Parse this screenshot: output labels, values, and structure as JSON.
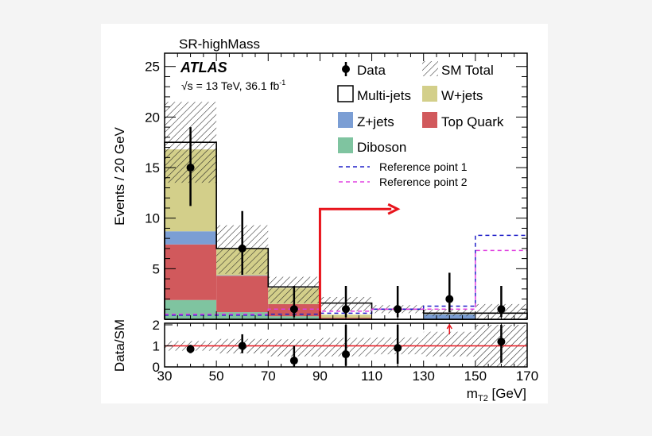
{
  "chart_data": {
    "type": "bar",
    "title": "SR-highMass",
    "experiment": "ATLAS",
    "energy_lumi": "√s = 13 TeV, 36.1 fb",
    "lumi_exponent": "-1",
    "xlabel": "m",
    "xlabel_sub": "T2",
    "xlabel_unit": " [GeV]",
    "ylabel": "Events / 20 GeV",
    "ratio_ylabel": "Data/SM",
    "xlim": [
      30,
      170
    ],
    "ylim": [
      0,
      26
    ],
    "ratio_ylim": [
      0,
      2
    ],
    "x_ticks": [
      "30",
      "50",
      "70",
      "90",
      "110",
      "130",
      "150",
      "170"
    ],
    "y_ticks": [
      "5",
      "10",
      "15",
      "20",
      "25"
    ],
    "ratio_y_ticks": [
      "0",
      "1",
      "2"
    ],
    "bin_edges": [
      30,
      50,
      70,
      90,
      110,
      130,
      150,
      170
    ],
    "stack": [
      {
        "name": "Diboson",
        "color": "#7fc4a0",
        "values": [
          1.9,
          0.7,
          0.3,
          0.05,
          0.0,
          0.0,
          0.0
        ]
      },
      {
        "name": "Top Quark",
        "color": "#d1595c",
        "values": [
          5.5,
          3.6,
          1.2,
          0.1,
          0.0,
          0.0,
          0.0
        ]
      },
      {
        "name": "Z+jets",
        "color": "#7b9ed4",
        "values": [
          1.3,
          0.05,
          0.0,
          0.0,
          0.0,
          0.5,
          0.0
        ]
      },
      {
        "name": "W+jets",
        "color": "#d3cf8a",
        "values": [
          8.1,
          2.65,
          1.6,
          0.3,
          0.0,
          0.05,
          0.0
        ]
      },
      {
        "name": "Multi-jets",
        "color": "#ffffff",
        "values": [
          0.7,
          0.0,
          0.1,
          1.15,
          1.0,
          0.05,
          0.6
        ]
      }
    ],
    "sm_total": [
      17.5,
      7.0,
      3.2,
      1.6,
      1.0,
      0.6,
      0.6
    ],
    "sm_unc_low": [
      13.5,
      4.5,
      1.6,
      0.8,
      0.6,
      0.3,
      0.0
    ],
    "sm_unc_high": [
      21.5,
      9.3,
      4.2,
      2.2,
      1.4,
      1.0,
      1.5
    ],
    "data": {
      "name": "Data",
      "x": [
        40,
        60,
        80,
        100,
        120,
        140,
        160
      ],
      "y": [
        15,
        7,
        1,
        1,
        1,
        2,
        1
      ],
      "err_low": [
        3.8,
        2.6,
        0.8,
        0.8,
        0.8,
        1.3,
        0.8
      ],
      "err_high": [
        4.0,
        3.7,
        2.3,
        2.3,
        2.3,
        2.6,
        2.3
      ]
    },
    "reference_points": [
      {
        "name": "Reference point 1",
        "color": "#2020c8",
        "values": [
          0.4,
          0.4,
          0.5,
          0.6,
          1.0,
          1.3,
          8.3
        ]
      },
      {
        "name": "Reference point 2",
        "color": "#e040e0",
        "values": [
          0.5,
          0.5,
          1.0,
          0.8,
          1.0,
          1.0,
          6.8
        ]
      }
    ],
    "sm_total_label": "SM Total",
    "cut_arrow": {
      "x": 90,
      "y": 10.9,
      "x_end": 120,
      "color": "#e8141c"
    },
    "ratio": {
      "x": [
        40,
        60,
        80,
        100,
        120,
        140,
        160
      ],
      "y": [
        0.85,
        1.0,
        0.3,
        0.6,
        0.9,
        null,
        1.2
      ],
      "err_low": [
        0.2,
        0.35,
        0.3,
        0.55,
        0.75,
        null,
        1.0
      ],
      "err_high": [
        0.2,
        0.55,
        0.7,
        1.5,
        1.5,
        null,
        0.9
      ],
      "off_scale_arrow_x": 140,
      "unc_low": [
        0.77,
        0.64,
        0.5,
        0.5,
        0.6,
        0.5,
        0.0
      ],
      "unc_high": [
        1.23,
        1.33,
        1.31,
        1.38,
        1.4,
        1.67,
        2.0
      ]
    }
  }
}
